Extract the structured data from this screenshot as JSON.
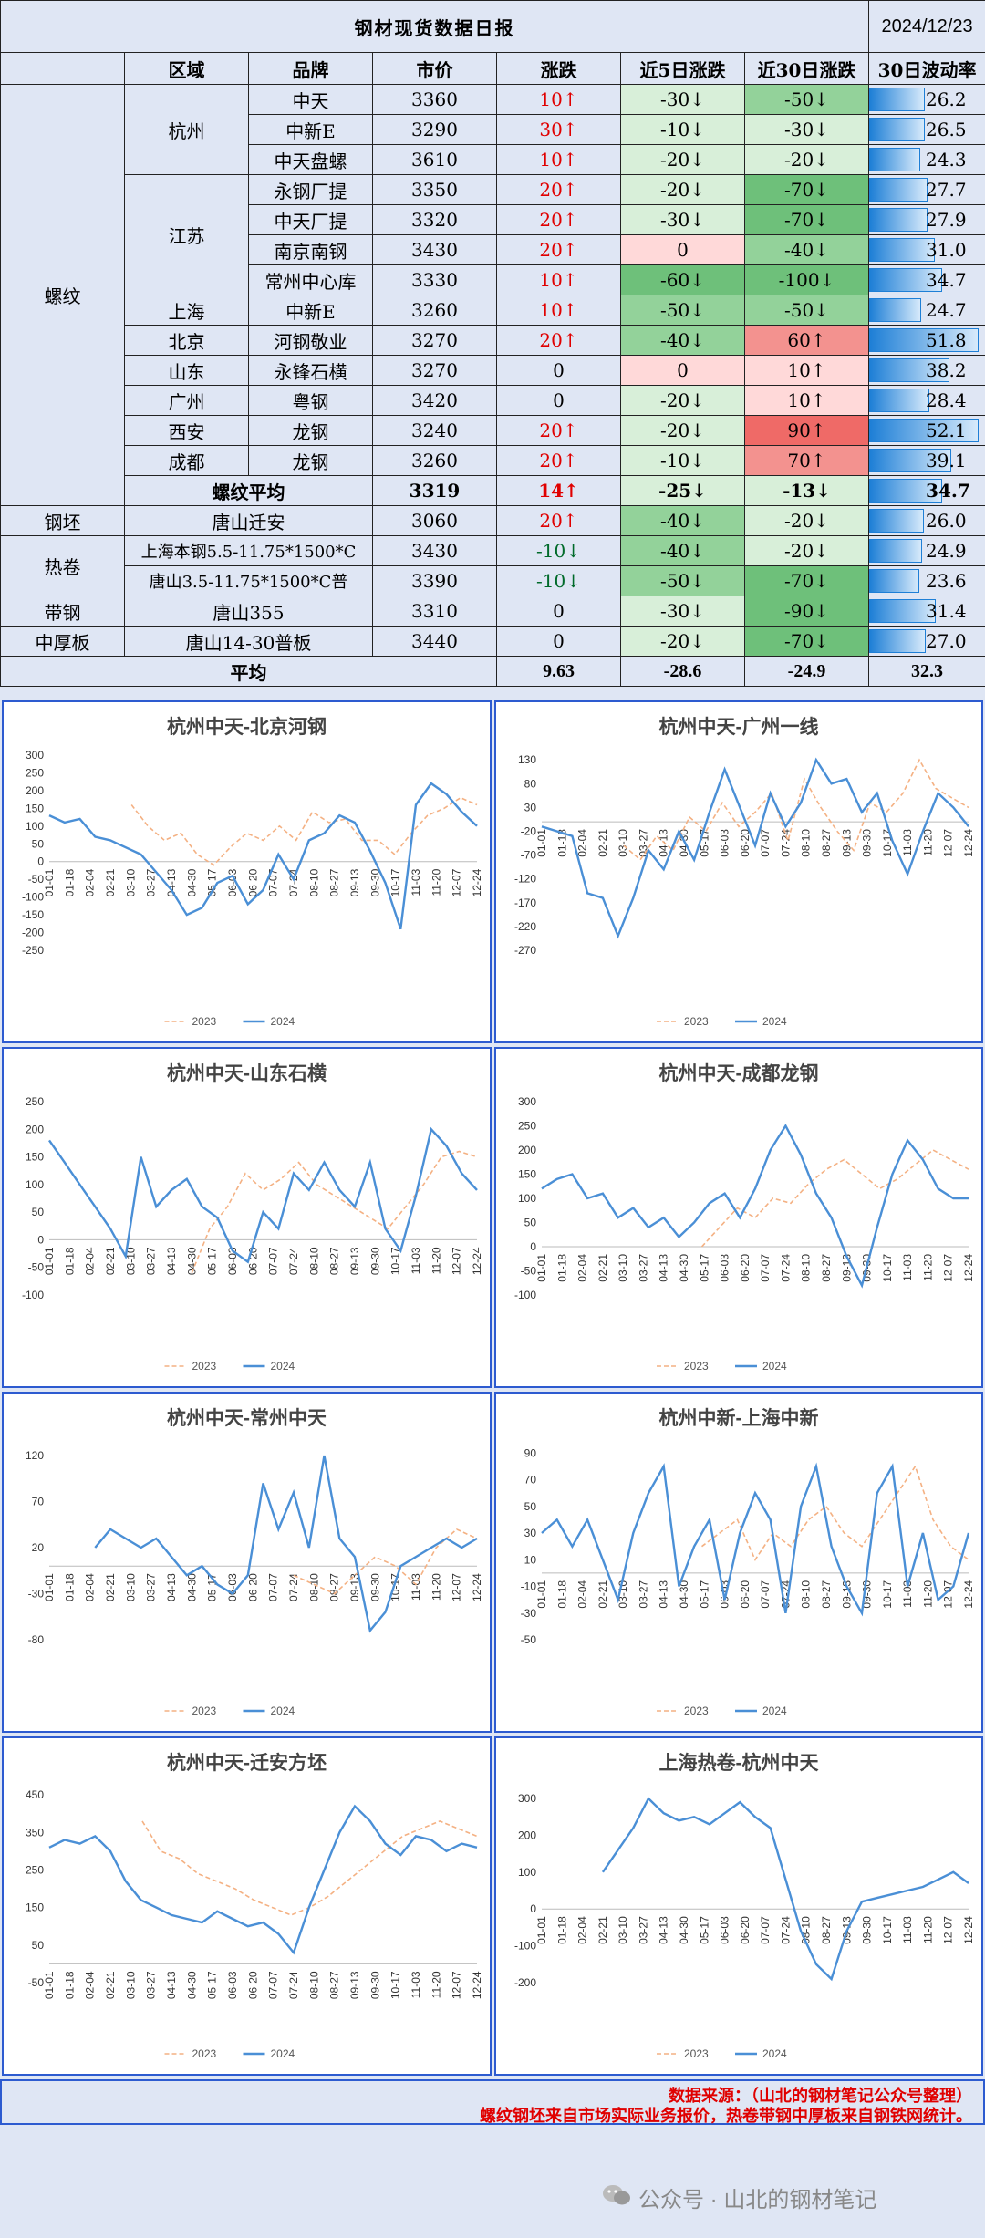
{
  "header": {
    "title": "钢材现货数据日报",
    "date": "2024/12/23"
  },
  "columns": [
    "区域",
    "品牌",
    "市价",
    "涨跌",
    "近5日涨跌",
    "近30日涨跌",
    "30日波动率"
  ],
  "group_rebar": "螺纹",
  "regions": {
    "hangzhou": "杭州",
    "jiangsu": "江苏",
    "shanghai": "上海",
    "beijing": "北京",
    "shandong": "山东",
    "guangzhou": "广州",
    "xian": "西安",
    "chengdu": "成都"
  },
  "rows": [
    {
      "brand": "中天",
      "price": "3360",
      "chg": "10↑",
      "d5": "-30↓",
      "d30": "-50↓",
      "vol": "26.2",
      "volv": 26.2
    },
    {
      "brand": "中新E",
      "price": "3290",
      "chg": "30↑",
      "d5": "-10↓",
      "d30": "-30↓",
      "vol": "26.5",
      "volv": 26.5
    },
    {
      "brand": "中天盘螺",
      "price": "3610",
      "chg": "10↑",
      "d5": "-20↓",
      "d30": "-20↓",
      "vol": "24.3",
      "volv": 24.3
    },
    {
      "brand": "永钢厂提",
      "price": "3350",
      "chg": "20↑",
      "d5": "-20↓",
      "d30": "-70↓",
      "vol": "27.7",
      "volv": 27.7
    },
    {
      "brand": "中天厂提",
      "price": "3320",
      "chg": "20↑",
      "d5": "-30↓",
      "d30": "-70↓",
      "vol": "27.9",
      "volv": 27.9
    },
    {
      "brand": "南京南钢",
      "price": "3430",
      "chg": "20↑",
      "d5": "0",
      "d30": "-40↓",
      "vol": "31.0",
      "volv": 31.0
    },
    {
      "brand": "常州中心库",
      "price": "3330",
      "chg": "10↑",
      "d5": "-60↓",
      "d30": "-100↓",
      "vol": "34.7",
      "volv": 34.7
    },
    {
      "brand": "中新E",
      "price": "3260",
      "chg": "10↑",
      "d5": "-50↓",
      "d30": "-50↓",
      "vol": "24.7",
      "volv": 24.7
    },
    {
      "brand": "河钢敬业",
      "price": "3270",
      "chg": "20↑",
      "d5": "-40↓",
      "d30": "60↑",
      "vol": "51.8",
      "volv": 51.8
    },
    {
      "brand": "永锋石横",
      "price": "3270",
      "chg": "0",
      "d5": "0",
      "d30": "10↑",
      "vol": "38.2",
      "volv": 38.2
    },
    {
      "brand": "粤钢",
      "price": "3420",
      "chg": "0",
      "d5": "-20↓",
      "d30": "10↑",
      "vol": "28.4",
      "volv": 28.4
    },
    {
      "brand": "龙钢",
      "price": "3240",
      "chg": "20↑",
      "d5": "-20↓",
      "d30": "90↑",
      "vol": "52.1",
      "volv": 52.1
    },
    {
      "brand": "龙钢",
      "price": "3260",
      "chg": "20↑",
      "d5": "-10↓",
      "d30": "70↑",
      "vol": "39.1",
      "volv": 39.1
    }
  ],
  "rebar_avg": {
    "label": "螺纹平均",
    "price": "3319",
    "chg": "14↑",
    "d5": "-25↓",
    "d30": "-13↓",
    "vol": "34.7",
    "volv": 34.7
  },
  "billet": {
    "group": "钢坯",
    "brand": "唐山迁安",
    "price": "3060",
    "chg": "20↑",
    "d5": "-40↓",
    "d30": "-20↓",
    "vol": "26.0",
    "volv": 26.0
  },
  "hrc": {
    "group": "热卷",
    "rows": [
      {
        "brand": "上海本钢5.5-11.75*1500*C",
        "price": "3430",
        "chg": "-10↓",
        "d5": "-40↓",
        "d30": "-20↓",
        "vol": "24.9",
        "volv": 24.9
      },
      {
        "brand": "唐山3.5-11.75*1500*C普",
        "price": "3390",
        "chg": "-10↓",
        "d5": "-50↓",
        "d30": "-70↓",
        "vol": "23.6",
        "volv": 23.6
      }
    ]
  },
  "strip": {
    "group": "带钢",
    "brand": "唐山355",
    "price": "3310",
    "chg": "0",
    "d5": "-30↓",
    "d30": "-90↓",
    "vol": "31.4",
    "volv": 31.4
  },
  "plate": {
    "group": "中厚板",
    "brand": "唐山14-30普板",
    "price": "3440",
    "chg": "0",
    "d5": "-20↓",
    "d30": "-70↓",
    "vol": "27.0",
    "volv": 27.0
  },
  "total": {
    "label": "平均",
    "chg": "9.63",
    "d5": "-28.6",
    "d30": "-24.9",
    "vol": "32.3"
  },
  "chart_data": [
    {
      "type": "line",
      "title": "杭州中天-北京河钢",
      "yticks": [
        "300",
        "250",
        "200",
        "150",
        "100",
        "50",
        "0",
        "-50",
        "-100",
        "-150",
        "-200",
        "-250"
      ],
      "ylim": [
        -250,
        300
      ],
      "xticks": [
        "01-01",
        "01-18",
        "02-04",
        "02-21",
        "03-10",
        "03-27",
        "04-13",
        "04-30",
        "05-17",
        "06-03",
        "06-20",
        "07-07",
        "07-24",
        "08-10",
        "08-27",
        "09-13",
        "09-30",
        "10-17",
        "11-03",
        "11-20",
        "12-07",
        "12-24"
      ],
      "series": [
        {
          "name": "2023",
          "color": "#f4b183",
          "dashed": true,
          "values": [
            null,
            null,
            null,
            null,
            null,
            160,
            100,
            60,
            80,
            20,
            -10,
            40,
            80,
            60,
            100,
            60,
            140,
            110,
            120,
            60,
            60,
            20,
            80,
            130,
            150,
            180,
            160
          ]
        },
        {
          "name": "2024",
          "color": "#4a8fd6",
          "dashed": false,
          "values": [
            130,
            110,
            120,
            70,
            60,
            40,
            20,
            -30,
            -80,
            -150,
            -130,
            -60,
            -40,
            -120,
            -80,
            20,
            -50,
            60,
            80,
            130,
            110,
            30,
            -60,
            -190,
            160,
            220,
            190,
            140,
            100
          ]
        }
      ]
    },
    {
      "type": "line",
      "title": "杭州中天-广州一线",
      "yticks": [
        "130",
        "80",
        "30",
        "-20",
        "-70",
        "-120",
        "-170",
        "-220",
        "-270"
      ],
      "ylim": [
        -270,
        140
      ],
      "xticks": [
        "01-01",
        "01-18",
        "02-04",
        "02-21",
        "03-10",
        "03-27",
        "04-13",
        "04-30",
        "05-17",
        "06-03",
        "06-20",
        "07-07",
        "07-24",
        "08-10",
        "08-27",
        "09-13",
        "09-30",
        "10-17",
        "11-03",
        "11-20",
        "12-07",
        "12-24"
      ],
      "series": [
        {
          "name": "2023",
          "color": "#f4b183",
          "dashed": true,
          "values": [
            null,
            null,
            null,
            null,
            null,
            -50,
            -80,
            -30,
            -60,
            10,
            -20,
            40,
            -10,
            20,
            60,
            -40,
            90,
            30,
            -20,
            -60,
            40,
            20,
            60,
            130,
            70,
            50,
            30
          ]
        },
        {
          "name": "2024",
          "color": "#4a8fd6",
          "dashed": false,
          "values": [
            -10,
            -20,
            -30,
            -150,
            -160,
            -240,
            -160,
            -60,
            -100,
            -20,
            -80,
            20,
            110,
            30,
            -50,
            60,
            -10,
            40,
            130,
            80,
            90,
            20,
            60,
            -40,
            -110,
            -20,
            60,
            30,
            -10
          ]
        }
      ]
    },
    {
      "type": "line",
      "title": "杭州中天-山东石横",
      "yticks": [
        "250",
        "200",
        "150",
        "100",
        "50",
        "0",
        "-50",
        "-100"
      ],
      "ylim": [
        -100,
        250
      ],
      "xticks": [
        "01-01",
        "01-18",
        "02-04",
        "02-21",
        "03-10",
        "03-27",
        "04-13",
        "04-30",
        "05-17",
        "06-03",
        "06-20",
        "07-07",
        "07-24",
        "08-10",
        "08-27",
        "09-13",
        "09-30",
        "10-17",
        "11-03",
        "11-20",
        "12-07",
        "12-24"
      ],
      "series": [
        {
          "name": "2023",
          "color": "#f4b183",
          "dashed": true,
          "values": [
            null,
            null,
            null,
            null,
            null,
            null,
            null,
            null,
            -60,
            20,
            60,
            120,
            90,
            110,
            140,
            100,
            80,
            60,
            40,
            20,
            60,
            100,
            150,
            160,
            150
          ]
        },
        {
          "name": "2024",
          "color": "#4a8fd6",
          "dashed": false,
          "values": [
            180,
            140,
            100,
            60,
            20,
            -30,
            150,
            60,
            90,
            110,
            60,
            40,
            -20,
            -40,
            50,
            20,
            120,
            90,
            140,
            90,
            60,
            140,
            20,
            -20,
            80,
            200,
            170,
            120,
            90
          ]
        }
      ]
    },
    {
      "type": "line",
      "title": "杭州中天-成都龙钢",
      "yticks": [
        "300",
        "250",
        "200",
        "150",
        "100",
        "50",
        "0",
        "-50",
        "-100"
      ],
      "ylim": [
        -100,
        300
      ],
      "xticks": [
        "01-01",
        "01-18",
        "02-04",
        "02-21",
        "03-10",
        "03-27",
        "04-13",
        "04-30",
        "05-17",
        "06-03",
        "06-20",
        "07-07",
        "07-24",
        "08-10",
        "08-27",
        "09-13",
        "09-30",
        "10-17",
        "11-03",
        "11-20",
        "12-07",
        "12-24"
      ],
      "series": [
        {
          "name": "2023",
          "color": "#f4b183",
          "dashed": true,
          "values": [
            null,
            null,
            null,
            null,
            null,
            null,
            null,
            null,
            null,
            0,
            40,
            80,
            60,
            100,
            90,
            130,
            160,
            180,
            150,
            120,
            140,
            170,
            200,
            180,
            160
          ]
        },
        {
          "name": "2024",
          "color": "#4a8fd6",
          "dashed": false,
          "values": [
            120,
            140,
            150,
            100,
            110,
            60,
            80,
            40,
            60,
            20,
            50,
            90,
            110,
            60,
            120,
            200,
            250,
            190,
            110,
            60,
            -20,
            -80,
            40,
            150,
            220,
            180,
            120,
            100,
            100
          ]
        }
      ]
    },
    {
      "type": "line",
      "title": "杭州中天-常州中天",
      "yticks": [
        "120",
        "70",
        "20",
        "-30",
        "-80"
      ],
      "ylim": [
        -80,
        130
      ],
      "xticks": [
        "01-01",
        "01-18",
        "02-04",
        "02-21",
        "03-10",
        "03-27",
        "04-13",
        "04-30",
        "05-17",
        "06-03",
        "06-20",
        "07-07",
        "07-24",
        "08-10",
        "08-27",
        "09-13",
        "09-30",
        "10-17",
        "11-03",
        "11-20",
        "12-07",
        "12-24"
      ],
      "series": [
        {
          "name": "2023",
          "color": "#f4b183",
          "dashed": true,
          "values": [
            null,
            null,
            null,
            null,
            null,
            null,
            null,
            null,
            null,
            null,
            null,
            null,
            -10,
            -20,
            -30,
            -10,
            10,
            0,
            -20,
            20,
            40,
            30
          ]
        },
        {
          "name": "2024",
          "color": "#4a8fd6",
          "dashed": false,
          "values": [
            null,
            null,
            null,
            20,
            40,
            30,
            20,
            30,
            10,
            -10,
            0,
            -20,
            -30,
            -10,
            90,
            40,
            80,
            20,
            120,
            30,
            10,
            -70,
            -50,
            0,
            10,
            20,
            30,
            20,
            30
          ]
        }
      ]
    },
    {
      "type": "line",
      "title": "杭州中新-上海中新",
      "yticks": [
        "90",
        "70",
        "50",
        "30",
        "10",
        "-10",
        "-30",
        "-50"
      ],
      "ylim": [
        -50,
        95
      ],
      "xticks": [
        "01-01",
        "01-18",
        "02-04",
        "02-21",
        "03-10",
        "03-27",
        "04-13",
        "04-30",
        "05-17",
        "06-03",
        "06-20",
        "07-07",
        "07-24",
        "08-10",
        "08-27",
        "09-13",
        "09-30",
        "10-17",
        "11-03",
        "11-20",
        "12-07",
        "12-24"
      ],
      "series": [
        {
          "name": "2023",
          "color": "#f4b183",
          "dashed": true,
          "values": [
            null,
            null,
            null,
            null,
            null,
            null,
            null,
            null,
            null,
            20,
            30,
            40,
            10,
            30,
            20,
            40,
            50,
            30,
            20,
            40,
            60,
            80,
            40,
            20,
            10
          ]
        },
        {
          "name": "2024",
          "color": "#4a8fd6",
          "dashed": false,
          "values": [
            30,
            40,
            20,
            40,
            10,
            -20,
            30,
            60,
            80,
            -10,
            20,
            40,
            -20,
            30,
            60,
            40,
            -30,
            50,
            80,
            20,
            -10,
            -30,
            60,
            80,
            -10,
            30,
            -20,
            -10,
            30
          ]
        }
      ]
    },
    {
      "type": "line",
      "title": "杭州中天-迁安方坯",
      "yticks": [
        "450",
        "350",
        "250",
        "150",
        "50",
        "-50"
      ],
      "ylim": [
        -50,
        460
      ],
      "xticks": [
        "01-01",
        "01-18",
        "02-04",
        "02-21",
        "03-10",
        "03-27",
        "04-13",
        "04-30",
        "05-17",
        "06-03",
        "06-20",
        "07-07",
        "07-24",
        "08-10",
        "08-27",
        "09-13",
        "09-30",
        "10-17",
        "11-03",
        "11-20",
        "12-07",
        "12-24"
      ],
      "series": [
        {
          "name": "2023",
          "color": "#f4b183",
          "dashed": true,
          "values": [
            null,
            null,
            null,
            null,
            null,
            380,
            300,
            280,
            240,
            220,
            200,
            170,
            150,
            130,
            150,
            180,
            220,
            260,
            300,
            340,
            360,
            380,
            360,
            340
          ]
        },
        {
          "name": "2024",
          "color": "#4a8fd6",
          "dashed": false,
          "values": [
            310,
            330,
            320,
            340,
            300,
            220,
            170,
            150,
            130,
            120,
            110,
            140,
            120,
            100,
            110,
            80,
            30,
            150,
            250,
            350,
            420,
            380,
            320,
            290,
            340,
            330,
            300,
            320,
            310
          ]
        }
      ]
    },
    {
      "type": "line",
      "title": "上海热卷-杭州中天",
      "yticks": [
        "300",
        "200",
        "100",
        "0",
        "-100",
        "-200"
      ],
      "ylim": [
        -200,
        320
      ],
      "xticks": [
        "01-01",
        "01-18",
        "02-04",
        "02-21",
        "03-10",
        "03-27",
        "04-13",
        "04-30",
        "05-17",
        "06-03",
        "06-20",
        "07-07",
        "07-24",
        "08-10",
        "08-27",
        "09-13",
        "09-30",
        "10-17",
        "11-03",
        "11-20",
        "12-07",
        "12-24"
      ],
      "series": [
        {
          "name": "2023",
          "color": "#f4b183",
          "dashed": true,
          "values": []
        },
        {
          "name": "2024",
          "color": "#4a8fd6",
          "dashed": false,
          "values": [
            null,
            null,
            null,
            null,
            100,
            160,
            220,
            300,
            260,
            240,
            250,
            230,
            260,
            290,
            250,
            220,
            80,
            -60,
            -150,
            -190,
            -60,
            20,
            30,
            40,
            50,
            60,
            80,
            100,
            70
          ]
        }
      ]
    }
  ],
  "footer": {
    "line1": "数据来源：（山北的钢材笔记公众号整理）",
    "line2": "螺纹钢坯来自市场实际业务报价，热卷带钢中厚板来自钢铁网统计。"
  },
  "watermark": "公众号 · 山北的钢材笔记"
}
